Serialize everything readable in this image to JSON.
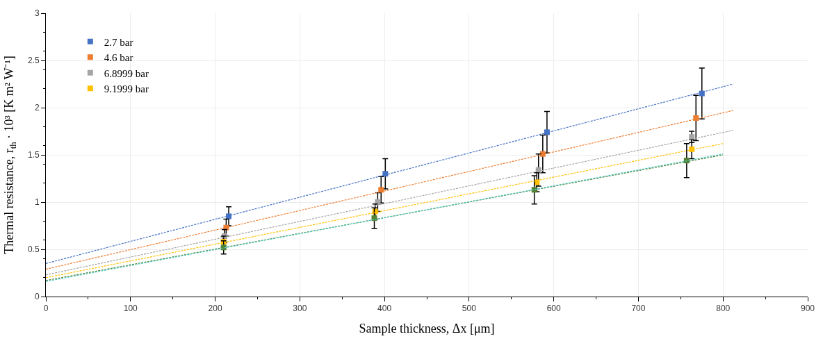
{
  "chart_data": {
    "type": "scatter",
    "xlabel": "Sample thickness, Δx [μm]",
    "ylabel": "Thermal resistance, r$_{th}$ · 10³ [K m² W⁻¹]",
    "xlim": [
      0,
      900
    ],
    "xticks": [
      0,
      100,
      200,
      300,
      400,
      500,
      600,
      700,
      800,
      900
    ],
    "ylim": [
      0,
      3
    ],
    "yticks": [
      0,
      0.5,
      1,
      1.5,
      2,
      2.5,
      3
    ],
    "grid": true,
    "legend": "top left",
    "marker": "square",
    "series": [
      {
        "name": "2.7 bar",
        "color": "#4472c4",
        "x": [
          216,
          401,
          592,
          775
        ],
        "values": [
          0.85,
          1.3,
          1.74,
          2.15
        ],
        "errors": [
          0.1,
          0.16,
          0.22,
          0.27
        ]
      },
      {
        "name": "4.6 bar",
        "color": "#ed7d31",
        "x": [
          213,
          396,
          587,
          768
        ],
        "values": [
          0.73,
          1.13,
          1.51,
          1.89
        ],
        "errors": [
          0.09,
          0.14,
          0.2,
          0.24
        ]
      },
      {
        "name": "6.8999 bar",
        "color": "#a5a5a5",
        "x": [
          211,
          392,
          582,
          763
        ],
        "values": [
          0.64,
          1.0,
          1.34,
          1.69
        ],
        "errors": [
          0.07,
          0.1,
          0.17,
          0.06
        ]
      },
      {
        "name": "9.1999 bar",
        "color": "#ffc000",
        "x": [
          210,
          389,
          580,
          763
        ],
        "values": [
          0.58,
          0.9,
          1.21,
          1.56
        ],
        "errors": [
          0.06,
          0.08,
          0.1,
          0.1
        ]
      },
      {
        "color": "#548235",
        "x": [
          210,
          388,
          577,
          757
        ],
        "values": [
          0.52,
          0.83,
          1.13,
          1.44
        ],
        "errors": [
          0.07,
          0.11,
          0.15,
          0.18
        ]
      },
      {
        "type": "line",
        "line_style": "dashed",
        "marker": "none",
        "color": "#4472c4",
        "x": [
          0,
          812
        ],
        "values": [
          0.35,
          2.25
        ]
      },
      {
        "type": "line",
        "line_style": "dashed",
        "marker": "none",
        "color": "#ed7d31",
        "x": [
          0,
          812
        ],
        "values": [
          0.29,
          1.97
        ]
      },
      {
        "type": "line",
        "line_style": "dashed",
        "marker": "none",
        "color": "#a5a5a5",
        "x": [
          0,
          812
        ],
        "values": [
          0.23,
          1.76
        ]
      },
      {
        "type": "line",
        "line_style": "dashed",
        "marker": "none",
        "color": "#ffc000",
        "x": [
          0,
          800
        ],
        "values": [
          0.2,
          1.62
        ]
      },
      {
        "type": "line",
        "line_style": "dashed",
        "marker": "none",
        "color": "#548235",
        "x": [
          0,
          800
        ],
        "values": [
          0.17,
          1.5
        ]
      },
      {
        "type": "line",
        "line_style": "dashed",
        "marker": "none",
        "color": "#4bc8c0",
        "x": [
          0,
          800
        ],
        "values": [
          0.16,
          1.51
        ]
      }
    ]
  }
}
